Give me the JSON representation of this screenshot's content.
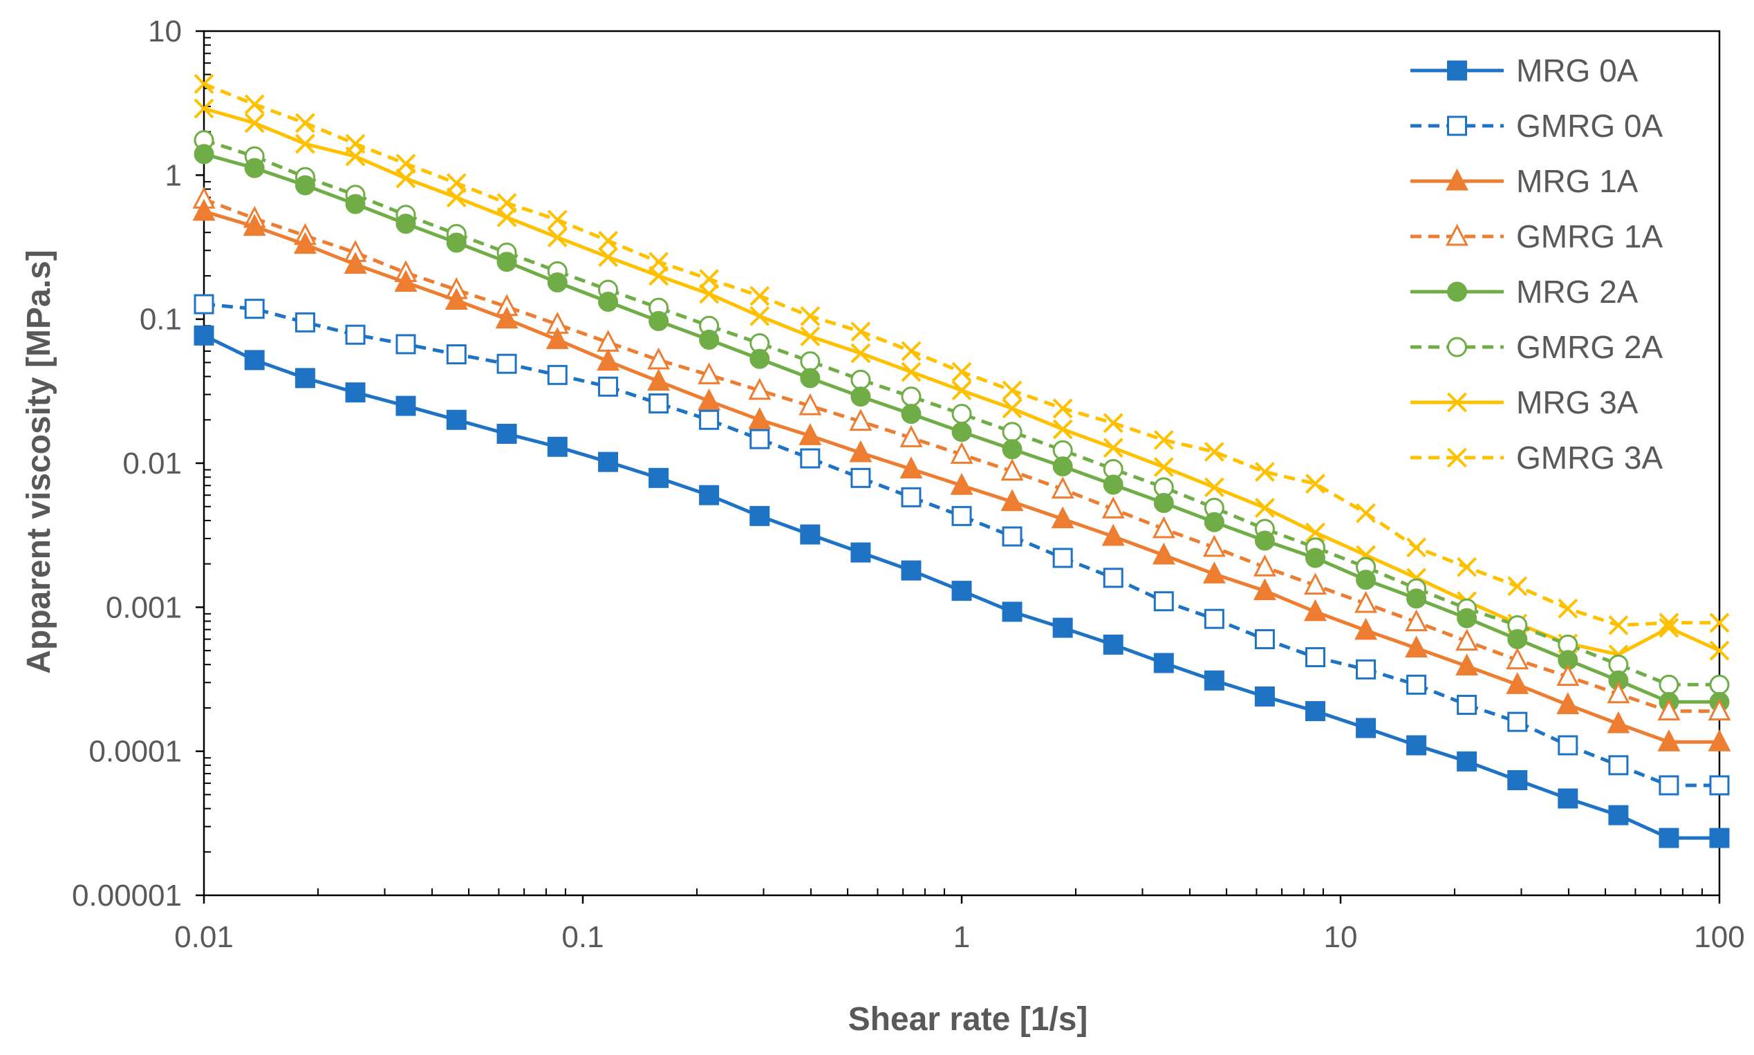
{
  "chart_data": {
    "type": "line",
    "title": "",
    "xlabel": "Shear rate [1/s]",
    "ylabel": "Apparent viscosity [MPa.s]",
    "xscale": "log",
    "yscale": "log",
    "xlim": [
      0.01,
      100
    ],
    "ylim": [
      1e-05,
      10
    ],
    "x_tick_values": [
      0.01,
      0.1,
      1,
      10,
      100
    ],
    "x_tick_labels": [
      "0.01",
      "0.1",
      "1",
      "10",
      "100"
    ],
    "y_tick_values": [
      1e-05,
      0.0001,
      0.001,
      0.01,
      0.1,
      1,
      10
    ],
    "y_tick_labels": [
      "0.00001",
      "0.0001",
      "0.001",
      "0.01",
      "0.1",
      "1",
      "10"
    ],
    "grid": false,
    "legend_position": "top-right",
    "x": [
      0.01,
      0.0136,
      0.0185,
      0.0251,
      0.0341,
      0.0464,
      0.063,
      0.0857,
      0.1166,
      0.1585,
      0.2154,
      0.2929,
      0.3981,
      0.5412,
      0.7357,
      1.0,
      1.359,
      1.848,
      2.512,
      3.415,
      4.642,
      6.31,
      8.577,
      11.66,
      15.85,
      21.54,
      29.29,
      39.81,
      54.12,
      73.56,
      100.0
    ],
    "series": [
      {
        "name": "MRG 0A",
        "color": "#1f73c4",
        "dash": "solid",
        "marker": "square",
        "filled": true,
        "values": [
          0.077,
          0.052,
          0.039,
          0.031,
          0.025,
          0.02,
          0.016,
          0.013,
          0.0102,
          0.0079,
          0.006,
          0.0043,
          0.0032,
          0.0024,
          0.0018,
          0.0013,
          0.00093,
          0.00072,
          0.00055,
          0.00041,
          0.00031,
          0.00024,
          0.00019,
          0.000145,
          0.00011,
          8.5e-05,
          6.3e-05,
          4.7e-05,
          3.6e-05,
          2.5e-05,
          2.5e-05
        ]
      },
      {
        "name": "GMRG 0A",
        "color": "#1f73c4",
        "dash": "dashed",
        "marker": "square",
        "filled": false,
        "values": [
          0.127,
          0.118,
          0.095,
          0.078,
          0.067,
          0.057,
          0.049,
          0.041,
          0.034,
          0.026,
          0.02,
          0.0147,
          0.0108,
          0.0079,
          0.0058,
          0.0043,
          0.0031,
          0.0022,
          0.0016,
          0.0011,
          0.00083,
          0.0006,
          0.00045,
          0.00037,
          0.00029,
          0.00021,
          0.00016,
          0.00011,
          8e-05,
          5.8e-05,
          5.8e-05
        ]
      },
      {
        "name": "MRG 1A",
        "color": "#ed7d31",
        "dash": "solid",
        "marker": "triangle",
        "filled": true,
        "values": [
          0.56,
          0.44,
          0.33,
          0.24,
          0.18,
          0.135,
          0.1,
          0.072,
          0.051,
          0.037,
          0.027,
          0.02,
          0.0155,
          0.0118,
          0.0091,
          0.007,
          0.0054,
          0.0041,
          0.0031,
          0.0023,
          0.0017,
          0.0013,
          0.00093,
          0.00069,
          0.00052,
          0.00039,
          0.00029,
          0.00021,
          0.000155,
          0.000116,
          0.000116
        ]
      },
      {
        "name": "GMRG 1A",
        "color": "#ed7d31",
        "dash": "dashed",
        "marker": "triangle",
        "filled": false,
        "values": [
          0.68,
          0.5,
          0.38,
          0.29,
          0.21,
          0.16,
          0.122,
          0.092,
          0.069,
          0.052,
          0.041,
          0.032,
          0.025,
          0.0195,
          0.015,
          0.0115,
          0.0088,
          0.0066,
          0.0048,
          0.0035,
          0.0026,
          0.0019,
          0.00142,
          0.00106,
          0.00079,
          0.00058,
          0.00043,
          0.00033,
          0.00025,
          0.00019,
          0.00019
        ]
      },
      {
        "name": "MRG 2A",
        "color": "#70ad47",
        "dash": "solid",
        "marker": "circle",
        "filled": true,
        "values": [
          1.4,
          1.12,
          0.85,
          0.63,
          0.46,
          0.34,
          0.25,
          0.18,
          0.132,
          0.097,
          0.072,
          0.053,
          0.039,
          0.029,
          0.022,
          0.0165,
          0.0125,
          0.0095,
          0.0071,
          0.0053,
          0.0039,
          0.0029,
          0.0022,
          0.00155,
          0.00115,
          0.00084,
          0.0006,
          0.00043,
          0.00031,
          0.00022,
          0.00022
        ]
      },
      {
        "name": "GMRG 2A",
        "color": "#70ad47",
        "dash": "dashed",
        "marker": "circle",
        "filled": false,
        "values": [
          1.75,
          1.35,
          0.97,
          0.73,
          0.53,
          0.39,
          0.29,
          0.215,
          0.16,
          0.12,
          0.09,
          0.068,
          0.051,
          0.038,
          0.029,
          0.022,
          0.0165,
          0.0123,
          0.0091,
          0.0068,
          0.0049,
          0.0035,
          0.0026,
          0.0019,
          0.00135,
          0.00098,
          0.00075,
          0.00055,
          0.0004,
          0.00029,
          0.00029
        ]
      },
      {
        "name": "MRG 3A",
        "color": "#ffc000",
        "dash": "solid",
        "marker": "x",
        "filled": false,
        "values": [
          2.9,
          2.3,
          1.65,
          1.35,
          0.95,
          0.7,
          0.51,
          0.37,
          0.27,
          0.2,
          0.15,
          0.105,
          0.076,
          0.058,
          0.043,
          0.032,
          0.024,
          0.0172,
          0.0128,
          0.0094,
          0.0068,
          0.0049,
          0.0033,
          0.0023,
          0.0016,
          0.0011,
          0.00077,
          0.00056,
          0.00047,
          0.00072,
          0.0005
        ]
      },
      {
        "name": "GMRG 3A",
        "color": "#ffc000",
        "dash": "dashed",
        "marker": "x",
        "filled": false,
        "values": [
          4.3,
          3.1,
          2.3,
          1.65,
          1.2,
          0.88,
          0.64,
          0.49,
          0.35,
          0.25,
          0.19,
          0.145,
          0.105,
          0.082,
          0.06,
          0.043,
          0.032,
          0.024,
          0.019,
          0.0145,
          0.012,
          0.0087,
          0.0072,
          0.0045,
          0.0026,
          0.0019,
          0.0014,
          0.00098,
          0.00075,
          0.00078,
          0.00078
        ]
      }
    ]
  }
}
